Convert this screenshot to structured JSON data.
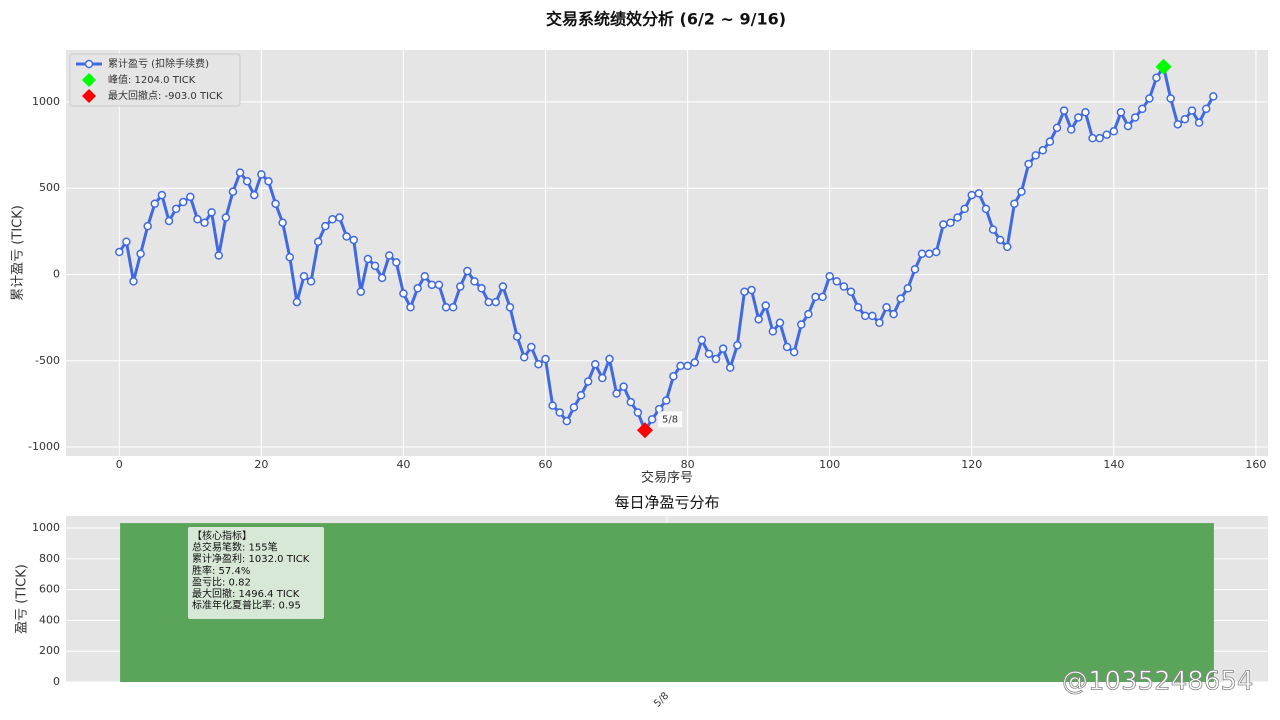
{
  "title": "交易系统绩效分析 (6/2 ~ 9/16)",
  "watermark": "@1035248654",
  "chart_data": [
    {
      "type": "line",
      "xlabel": "交易序号",
      "ylabel": "累计盈亏 (TICK)",
      "x": [
        0,
        1,
        2,
        3,
        4,
        5,
        6,
        7,
        8,
        9,
        10,
        11,
        12,
        13,
        14,
        15,
        16,
        17,
        18,
        19,
        20,
        21,
        22,
        23,
        24,
        25,
        26,
        27,
        28,
        29,
        30,
        31,
        32,
        33,
        34,
        35,
        36,
        37,
        38,
        39,
        40,
        41,
        42,
        43,
        44,
        45,
        46,
        47,
        48,
        49,
        50,
        51,
        52,
        53,
        54,
        55,
        56,
        57,
        58,
        59,
        60,
        61,
        62,
        63,
        64,
        65,
        66,
        67,
        68,
        69,
        70,
        71,
        72,
        73,
        74,
        75,
        76,
        77,
        78,
        79,
        80,
        81,
        82,
        83,
        84,
        85,
        86,
        87,
        88,
        89,
        90,
        91,
        92,
        93,
        94,
        95,
        96,
        97,
        98,
        99,
        100,
        101,
        102,
        103,
        104,
        105,
        106,
        107,
        108,
        109,
        110,
        111,
        112,
        113,
        114,
        115,
        116,
        117,
        118,
        119,
        120,
        121,
        122,
        123,
        124,
        125,
        126,
        127,
        128,
        129,
        130,
        131,
        132,
        133,
        134,
        135,
        136,
        137,
        138,
        139,
        140,
        141,
        142,
        143,
        144,
        145,
        146,
        147,
        148,
        149,
        150,
        151,
        152,
        153,
        154
      ],
      "series": [
        {
          "name": "累计盈亏 (扣除手续费)",
          "color": "#4169e1",
          "values": [
            130,
            190,
            -40,
            120,
            280,
            410,
            460,
            310,
            380,
            420,
            450,
            320,
            300,
            360,
            110,
            330,
            480,
            590,
            540,
            460,
            580,
            540,
            410,
            300,
            100,
            -160,
            -10,
            -40,
            190,
            280,
            320,
            330,
            220,
            200,
            -100,
            90,
            50,
            -20,
            110,
            70,
            -110,
            -190,
            -80,
            -10,
            -60,
            -60,
            -190,
            -190,
            -70,
            20,
            -40,
            -80,
            -160,
            -160,
            -70,
            -190,
            -360,
            -480,
            -420,
            -520,
            -490,
            -760,
            -800,
            -850,
            -770,
            -700,
            -620,
            -520,
            -600,
            -490,
            -690,
            -650,
            -740,
            -800,
            -903,
            -840,
            -780,
            -730,
            -590,
            -530,
            -530,
            -510,
            -380,
            -460,
            -490,
            -430,
            -540,
            -410,
            -100,
            -90,
            -260,
            -180,
            -330,
            -280,
            -420,
            -450,
            -290,
            -230,
            -130,
            -130,
            -10,
            -40,
            -70,
            -100,
            -190,
            -240,
            -240,
            -280,
            -190,
            -230,
            -140,
            -80,
            30,
            120,
            120,
            130,
            290,
            300,
            330,
            380,
            460,
            470,
            380,
            260,
            200,
            160,
            410,
            480,
            640,
            690,
            720,
            770,
            850,
            950,
            840,
            910,
            940,
            790,
            790,
            810,
            830,
            940,
            860,
            910,
            960,
            1020,
            1140,
            1204,
            1020,
            870,
            900,
            950,
            880,
            960,
            1032
          ]
        }
      ],
      "points": [
        {
          "name": "峰值: 1204.0 TICK",
          "x": 147,
          "y": 1204,
          "color": "#00ff00"
        },
        {
          "name": "最大回撤点: -903.0 TICK",
          "x": 74,
          "y": -903,
          "color": "#ff0000"
        }
      ],
      "annotation": {
        "text": "5/8",
        "x": 74,
        "y": -903
      },
      "xlim": [
        -7.5,
        161.7
      ],
      "ylim": [
        -1052,
        1301
      ],
      "xticks": [
        0,
        20,
        40,
        60,
        80,
        100,
        120,
        140,
        160
      ],
      "yticks": [
        -1000,
        -500,
        0,
        500,
        1000
      ],
      "grid": true,
      "legend": "upper left"
    },
    {
      "type": "bar",
      "title": "每日净盈亏分布",
      "ylabel": "盈亏 (TICK)",
      "categories": [
        "5/8"
      ],
      "values": [
        1032
      ],
      "color": "#5ba55b",
      "ylim": [
        0,
        1078
      ],
      "yticks": [
        0,
        200,
        400,
        600,
        800,
        1000
      ],
      "grid": true,
      "text_box": [
        "【核心指标】",
        "总交易笔数: 155笔",
        "累计净盈利: 1032.0 TICK",
        "胜率: 57.4%",
        "盈亏比: 0.82",
        "最大回撤: 1496.4 TICK",
        "标准年化夏普比率: 0.95"
      ]
    }
  ]
}
